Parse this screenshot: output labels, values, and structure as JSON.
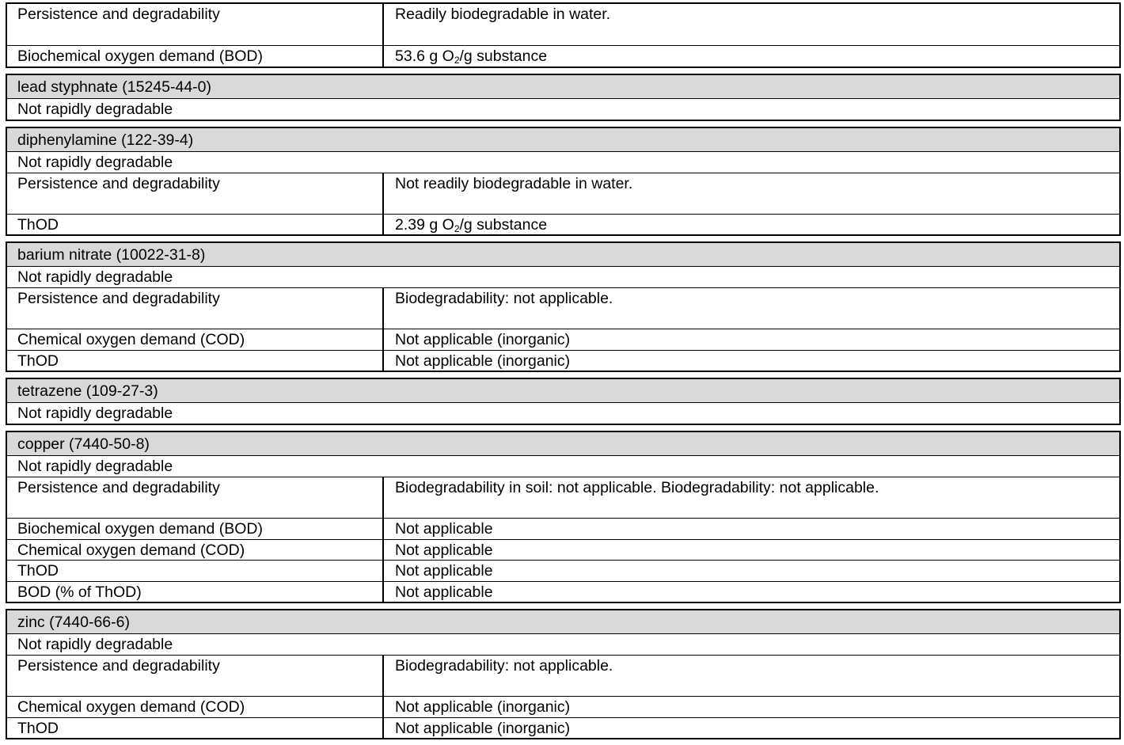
{
  "tables": [
    {
      "header": null,
      "note": null,
      "rows": [
        {
          "label": "Persistence and degradability",
          "value": "Readily biodegradable in water.",
          "tall": true
        },
        {
          "label": "Biochemical oxygen demand (BOD)",
          "value": "53.6 g O|2|/g substance"
        }
      ]
    },
    {
      "header": "lead styphnate (15245-44-0)",
      "note": "Not rapidly degradable",
      "rows": []
    },
    {
      "header": "diphenylamine (122-39-4)",
      "note": "Not rapidly degradable",
      "rows": [
        {
          "label": "Persistence and degradability",
          "value": "Not readily biodegradable in water.",
          "tall": true
        },
        {
          "label": "ThOD",
          "value": "2.39 g O|2|/g substance"
        }
      ]
    },
    {
      "header": "barium nitrate (10022-31-8)",
      "note": "Not rapidly degradable",
      "rows": [
        {
          "label": "Persistence and degradability",
          "value": "Biodegradability: not applicable.",
          "tall": true
        },
        {
          "label": "Chemical oxygen demand (COD)",
          "value": "Not applicable (inorganic)"
        },
        {
          "label": "ThOD",
          "value": "Not applicable (inorganic)"
        }
      ]
    },
    {
      "header": "tetrazene (109-27-3)",
      "note": "Not rapidly degradable",
      "rows": []
    },
    {
      "header": "copper (7440-50-8)",
      "note": "Not rapidly degradable",
      "rows": [
        {
          "label": "Persistence and degradability",
          "value": "Biodegradability in soil: not applicable. Biodegradability: not applicable.",
          "tall": true
        },
        {
          "label": "Biochemical oxygen demand (BOD)",
          "value": "Not applicable"
        },
        {
          "label": "Chemical oxygen demand (COD)",
          "value": "Not applicable"
        },
        {
          "label": "ThOD",
          "value": "Not applicable"
        },
        {
          "label": "BOD (% of ThOD)",
          "value": "Not applicable"
        }
      ]
    },
    {
      "header": "zinc (7440-66-6)",
      "note": "Not rapidly degradable",
      "rows": [
        {
          "label": "Persistence and degradability",
          "value": "Biodegradability: not applicable.",
          "tall": true
        },
        {
          "label": "Chemical oxygen demand (COD)",
          "value": "Not applicable (inorganic)"
        },
        {
          "label": "ThOD",
          "value": "Not applicable (inorganic)"
        }
      ]
    }
  ]
}
